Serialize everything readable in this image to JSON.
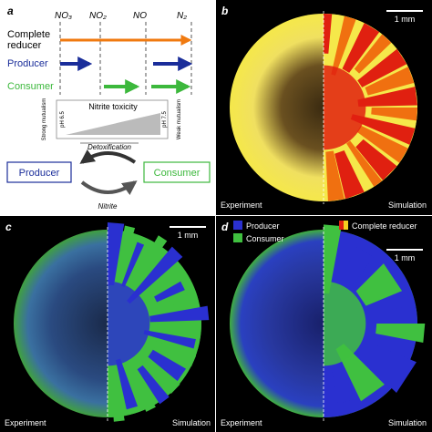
{
  "panels": [
    {
      "label": "a",
      "columns": [
        "NO₃",
        "NO₂",
        "NO",
        "N₂"
      ],
      "rows": [
        "Complete reducer",
        "Producer",
        "Consumer"
      ],
      "toxicity": {
        "title": "Nitrite toxicity",
        "left": "Strong mutualism",
        "right": "Weak mutualism",
        "ph_low": "pH 6.5",
        "ph_high": "pH 7.5",
        "process": "Detoxification"
      },
      "cycle": {
        "left": "Producer",
        "right": "Consumer",
        "middle": "Nitrite"
      }
    },
    {
      "label": "b",
      "scale": "1 mm",
      "left": "Experiment",
      "right": "Simulation"
    },
    {
      "label": "c",
      "scale": "1 mm",
      "left": "Experiment",
      "right": "Simulation"
    },
    {
      "label": "d",
      "scale": "1 mm",
      "left": "Experiment",
      "right": "Simulation",
      "legend": [
        "Producer",
        "Consumer",
        "Complete reducer"
      ]
    }
  ]
}
